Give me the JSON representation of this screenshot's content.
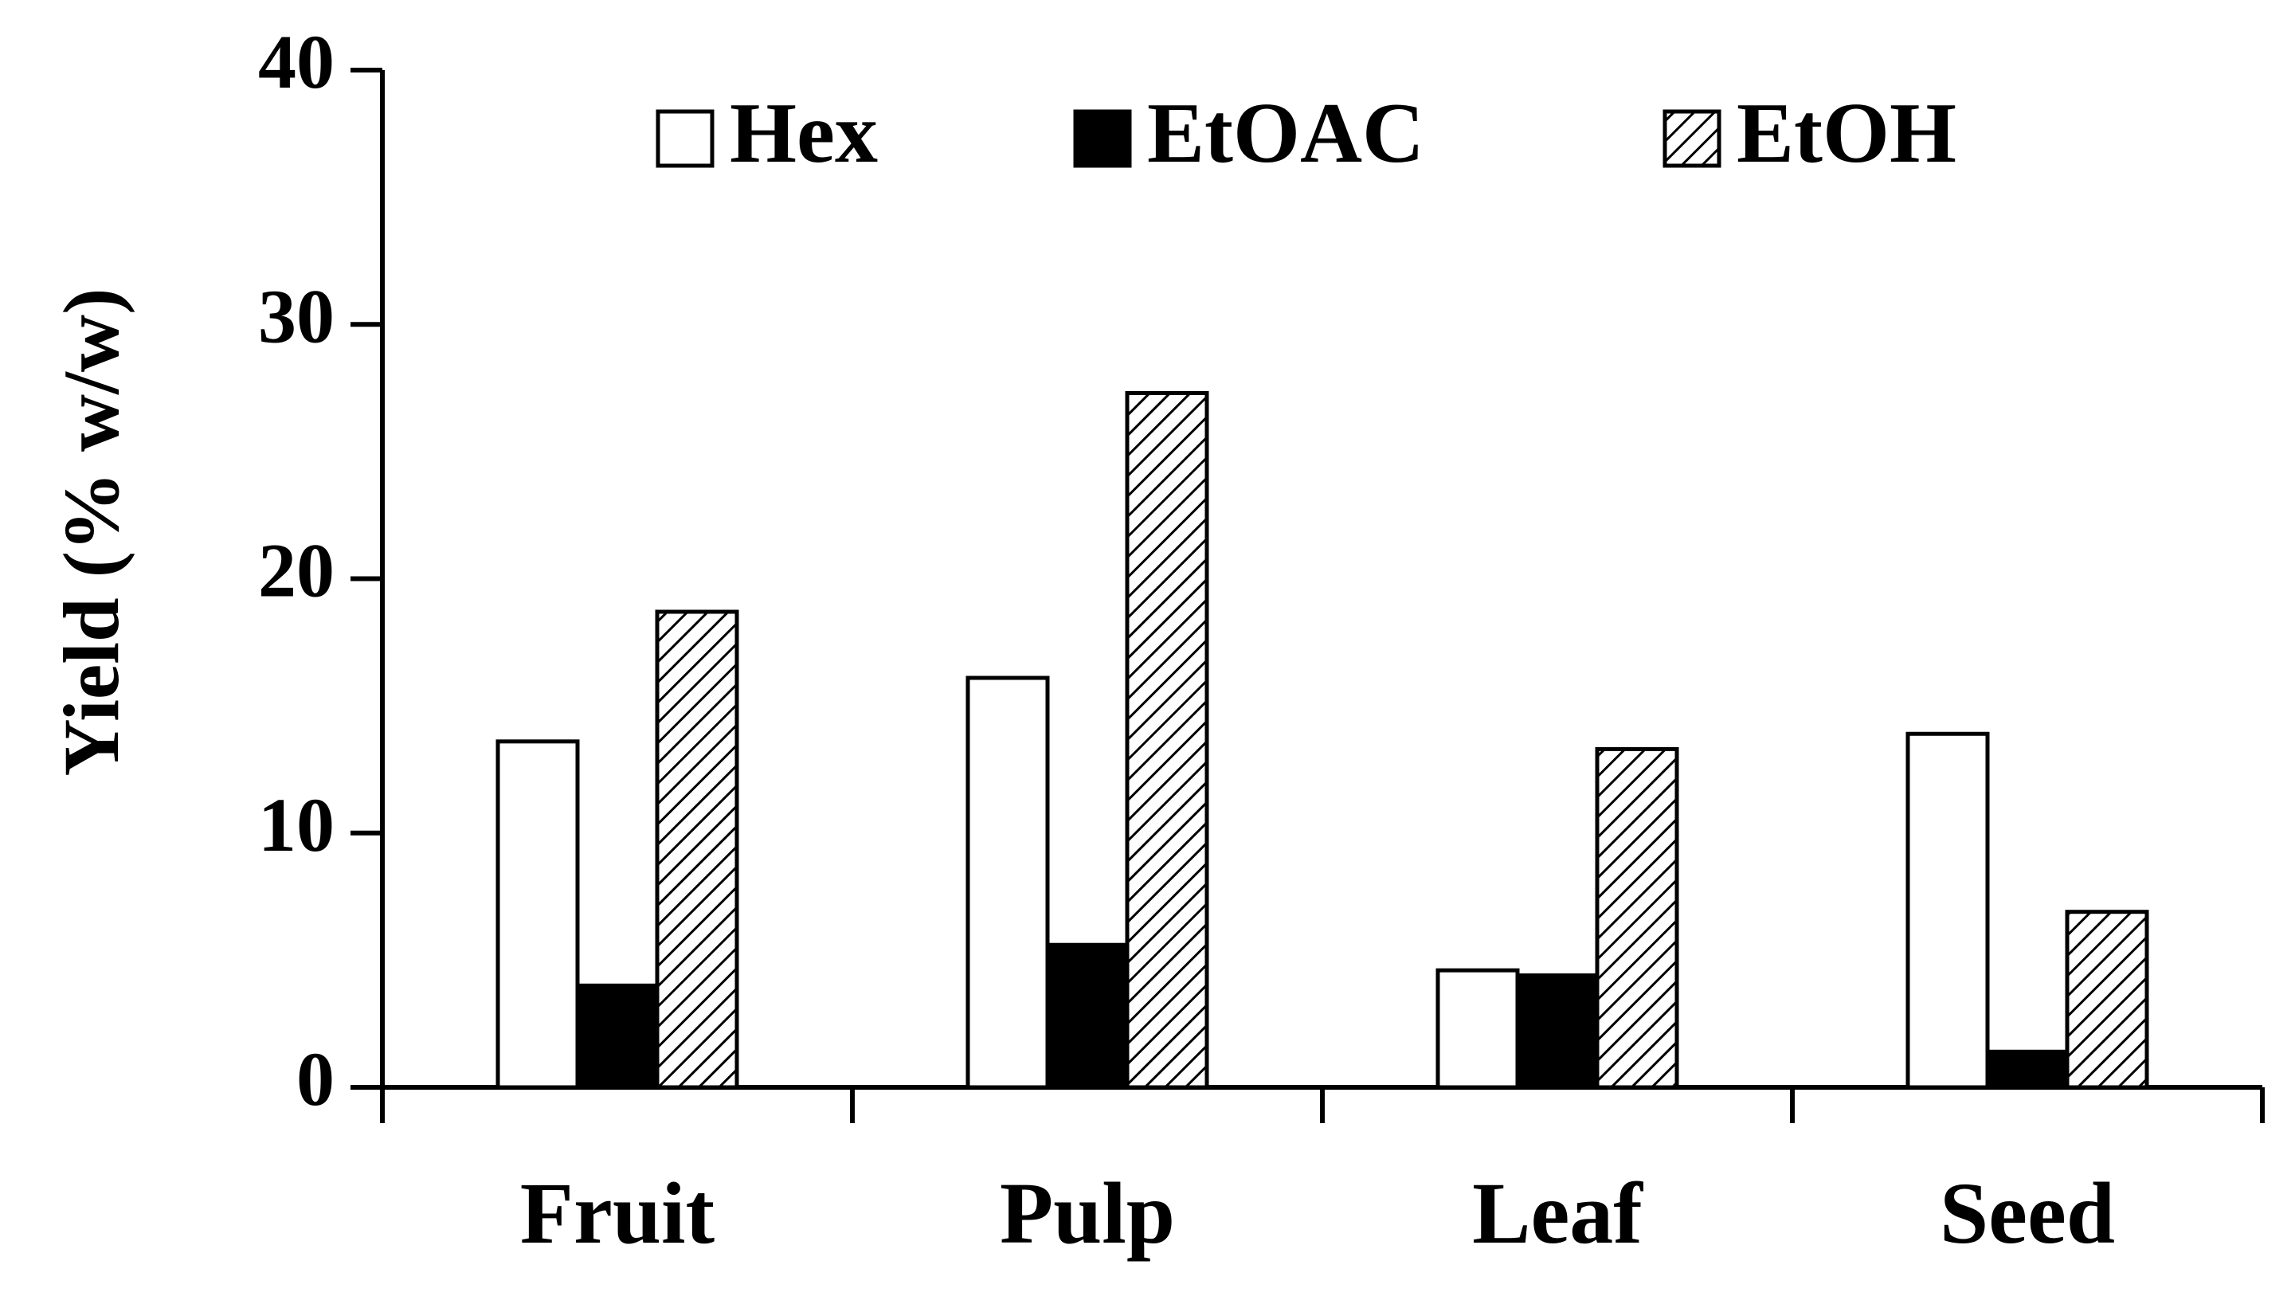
{
  "chart_data": {
    "type": "bar",
    "categories": [
      "Fruit",
      "Pulp",
      "Leaf",
      "Seed"
    ],
    "series": [
      {
        "name": "Hex",
        "values": [
          13.6,
          16.1,
          4.6,
          13.9
        ],
        "fill": "white"
      },
      {
        "name": "EtOAC",
        "values": [
          4.0,
          5.6,
          4.4,
          1.4
        ],
        "fill": "black"
      },
      {
        "name": "EtOH",
        "values": [
          18.7,
          27.3,
          13.3,
          6.9
        ],
        "fill": "hatched"
      }
    ],
    "ylabel": "Yield (% w/w)",
    "ylim": [
      0,
      40
    ],
    "yticks": [
      0,
      10,
      20,
      30,
      40
    ],
    "grid": false,
    "legend_position": "top"
  },
  "colors": {
    "bar_outline": "#000000",
    "solid_fill": "#000000",
    "hatch": "#000000",
    "background": "#ffffff"
  }
}
